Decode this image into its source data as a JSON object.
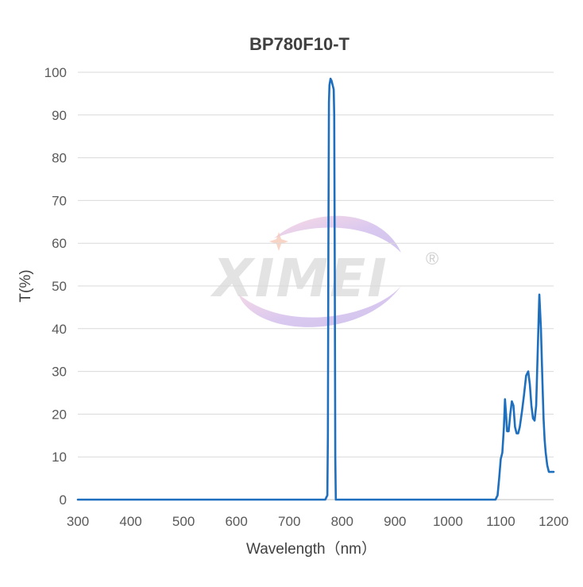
{
  "chart_data": {
    "type": "line",
    "title": "BP780F10-T",
    "xlabel": "Wavelength（nm）",
    "ylabel": "T(%)",
    "xlim": [
      300,
      1200
    ],
    "ylim": [
      0,
      100
    ],
    "x_ticks": [
      300,
      400,
      500,
      600,
      700,
      800,
      900,
      1000,
      1100,
      1200
    ],
    "y_ticks": [
      0,
      10,
      20,
      30,
      40,
      50,
      60,
      70,
      80,
      90,
      100
    ],
    "x_tick_labels": [
      "300",
      "400",
      "500",
      "600",
      "700",
      "800",
      "900",
      "1000",
      "1100",
      "1200"
    ],
    "y_tick_labels": [
      "0",
      "10",
      "20",
      "30",
      "40",
      "50",
      "60",
      "70",
      "80",
      "90",
      "100"
    ],
    "grid": "horizontal",
    "legend": "none",
    "series": [
      {
        "color": "#1f6fbf",
        "x": [
          300,
          500,
          700,
          768,
          772,
          773,
          774,
          775,
          776,
          778,
          780,
          782,
          784,
          785,
          786,
          787,
          788,
          790,
          800,
          900,
          1000,
          1090,
          1094,
          1097,
          1100,
          1103,
          1106,
          1108,
          1110,
          1112,
          1115,
          1118,
          1121,
          1124,
          1127,
          1130,
          1133,
          1136,
          1140,
          1144,
          1148,
          1152,
          1155,
          1158,
          1161,
          1164,
          1167,
          1170,
          1173,
          1176,
          1179,
          1181,
          1183,
          1185,
          1188,
          1191,
          1194,
          1197,
          1200
        ],
        "y": [
          0,
          0,
          0,
          0,
          1,
          15,
          60,
          93,
          97,
          98.5,
          98,
          97,
          96,
          90,
          55,
          10,
          0,
          0,
          0,
          0,
          0,
          0,
          1,
          5,
          9.5,
          11,
          17,
          23.5,
          20,
          16,
          16,
          20,
          23,
          22,
          17,
          15.5,
          15.5,
          17,
          20.5,
          24.5,
          29,
          30,
          27,
          22,
          19,
          18.5,
          22,
          35,
          48,
          40,
          27,
          19,
          14,
          11,
          8,
          6.5,
          6.5,
          6.5,
          6.5
        ]
      }
    ]
  },
  "watermark": {
    "text": "XIMEI",
    "symbol": "®",
    "colors": {
      "swoosh_purple": "#c9b2e6",
      "swoosh_pink": "#f2c2d6",
      "star": "#f6c9b8"
    }
  }
}
